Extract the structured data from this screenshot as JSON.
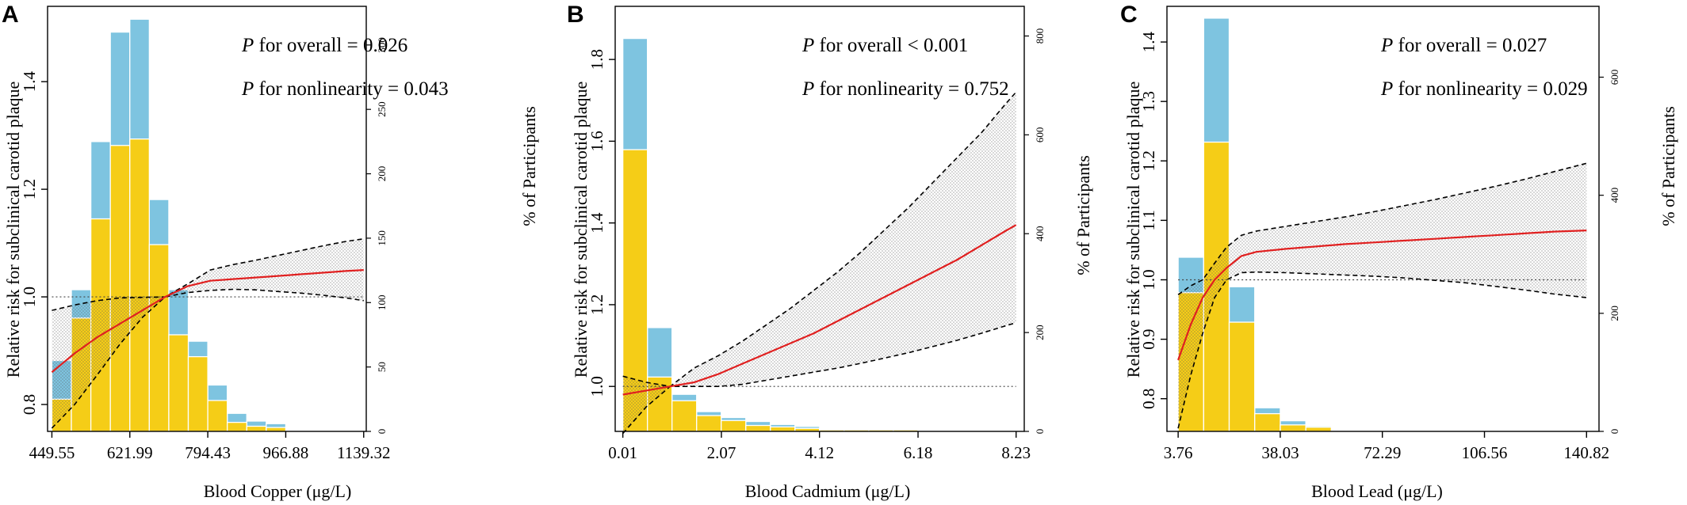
{
  "chart_data": [
    {
      "type": "bar",
      "panel_label": "A",
      "xlabel": "Blood Copper (μg/L)",
      "ylabel": "Relative risk for subclinical carotid plaque",
      "ylabel_right": "% of Participants",
      "x_ticks": [
        "449.55",
        "621.99",
        "794.43",
        "966.88",
        "1139.32"
      ],
      "x_tick_values": [
        449.55,
        621.99,
        794.43,
        966.88,
        1139.32
      ],
      "y_ticks": [
        "0.8",
        "1.0",
        "1.2",
        "1.4"
      ],
      "y_tick_values": [
        0.8,
        1.0,
        1.2,
        1.4
      ],
      "y_right_ticks": [
        "0",
        "50",
        "100",
        "150",
        "200",
        "250",
        "300"
      ],
      "y_right_tick_values": [
        0,
        50,
        100,
        150,
        200,
        250,
        300
      ],
      "xlim": [
        440,
        1145
      ],
      "ylim": [
        0.75,
        1.54
      ],
      "y_right_lim": [
        0,
        330
      ],
      "p_overall_label": "P",
      "p_overall_text": " for overall = 0.026",
      "p_nonlinear_label": "P",
      "p_nonlinear_text": " for nonlinearity = 0.043",
      "bins": [
        449.55,
        492.66,
        535.77,
        578.88,
        621.99,
        665.1,
        708.21,
        751.32,
        794.43,
        837.54,
        880.65,
        923.76,
        966.88,
        1009.99,
        1053.1,
        1096.21,
        1139.32
      ],
      "counts_blue": [
        55,
        110,
        225,
        310,
        320,
        180,
        110,
        70,
        36,
        14,
        8,
        6
      ],
      "counts_yellow": [
        25,
        88,
        165,
        222,
        227,
        145,
        75,
        58,
        24,
        7,
        4,
        3
      ],
      "spline_x": [
        449.55,
        500,
        550,
        600,
        650,
        700,
        750,
        800,
        850,
        900,
        950,
        1000,
        1050,
        1100,
        1139.32
      ],
      "rr": [
        0.86,
        0.895,
        0.925,
        0.95,
        0.975,
        1.0,
        1.02,
        1.03,
        1.033,
        1.036,
        1.039,
        1.042,
        1.045,
        1.048,
        1.05
      ],
      "ci_lower": [
        0.756,
        0.8,
        0.855,
        0.912,
        0.962,
        1.0,
        1.008,
        1.012,
        1.014,
        1.013,
        1.01,
        1.007,
        1.003,
        0.998,
        0.993
      ],
      "ci_upper": [
        0.975,
        0.985,
        0.993,
        0.998,
        0.999,
        1.0,
        1.024,
        1.05,
        1.06,
        1.068,
        1.077,
        1.086,
        1.095,
        1.103,
        1.108
      ],
      "reference": 1.0,
      "colors": {
        "blue": "#7ec4e0",
        "yellow": "#f5cd17",
        "spline": "#e02020",
        "ci": "#000000"
      }
    },
    {
      "type": "bar",
      "panel_label": "B",
      "xlabel": "Blood Cadmium (μg/L)",
      "ylabel": "Relative risk for subclinical carotid plaque",
      "ylabel_right": "% of Participants",
      "x_ticks": [
        "0.01",
        "2.07",
        "4.12",
        "6.18",
        "8.23"
      ],
      "x_tick_values": [
        0.01,
        2.07,
        4.12,
        6.18,
        8.23
      ],
      "y_ticks": [
        "1.0",
        "1.2",
        "1.4",
        "1.6",
        "1.8"
      ],
      "y_tick_values": [
        1.0,
        1.2,
        1.4,
        1.6,
        1.8
      ],
      "y_right_ticks": [
        "0",
        "200",
        "400",
        "600",
        "800"
      ],
      "y_right_tick_values": [
        0,
        200,
        400,
        600,
        800
      ],
      "xlim": [
        -0.15,
        8.4
      ],
      "ylim": [
        0.89,
        1.93
      ],
      "y_right_lim": [
        0,
        860
      ],
      "p_overall_label": "P",
      "p_overall_text": " for overall < 0.001",
      "p_nonlinear_label": "P",
      "p_nonlinear_text": " for nonlinearity = 0.752",
      "bins": [
        0.01,
        0.524,
        1.038,
        1.552,
        2.066,
        2.58,
        3.094,
        3.608,
        4.122,
        4.636,
        5.15,
        5.664,
        6.178,
        6.692,
        7.206,
        7.72,
        8.23
      ],
      "counts_blue": [
        795,
        210,
        75,
        40,
        28,
        20,
        14,
        10,
        4,
        4,
        4,
        4
      ],
      "counts_yellow": [
        570,
        110,
        62,
        32,
        22,
        12,
        9,
        6,
        3,
        3,
        3,
        3
      ],
      "spline_x": [
        0.01,
        0.5,
        1.0,
        1.5,
        2.0,
        2.5,
        3.0,
        3.5,
        4.0,
        4.5,
        5.0,
        5.5,
        6.0,
        6.5,
        7.0,
        7.5,
        8.0,
        8.23
      ],
      "rr": [
        0.98,
        0.99,
        1.0,
        1.01,
        1.03,
        1.055,
        1.08,
        1.105,
        1.13,
        1.16,
        1.19,
        1.22,
        1.25,
        1.28,
        1.31,
        1.345,
        1.38,
        1.395
      ],
      "ci_lower": [
        0.885,
        0.95,
        1.0,
        1.0,
        1.0,
        1.005,
        1.015,
        1.025,
        1.035,
        1.045,
        1.057,
        1.07,
        1.083,
        1.098,
        1.113,
        1.13,
        1.148,
        1.156
      ],
      "ci_upper": [
        1.025,
        1.01,
        1.0,
        1.045,
        1.075,
        1.11,
        1.15,
        1.19,
        1.235,
        1.28,
        1.33,
        1.385,
        1.44,
        1.5,
        1.56,
        1.62,
        1.69,
        1.72
      ],
      "reference": 1.0,
      "colors": {
        "blue": "#7ec4e0",
        "yellow": "#f5cd17",
        "spline": "#e02020",
        "ci": "#000000"
      }
    },
    {
      "type": "bar",
      "panel_label": "C",
      "xlabel": "Blood Lead (μg/L)",
      "ylabel": "Relative risk for subclinical carotid plaque",
      "ylabel_right": "% of Participants",
      "x_ticks": [
        "3.76",
        "38.03",
        "72.29",
        "106.56",
        "140.82"
      ],
      "x_tick_values": [
        3.76,
        38.03,
        72.29,
        106.56,
        140.82
      ],
      "y_ticks": [
        "0.8",
        "0.9",
        "1.0",
        "1.1",
        "1.2",
        "1.3",
        "1.4"
      ],
      "y_tick_values": [
        0.8,
        0.9,
        1.0,
        1.1,
        1.2,
        1.3,
        1.4
      ],
      "y_right_ticks": [
        "0",
        "200",
        "400",
        "600"
      ],
      "y_right_tick_values": [
        0,
        200,
        400,
        600
      ],
      "xlim": [
        0,
        145
      ],
      "ylim": [
        0.745,
        1.46
      ],
      "y_right_lim": [
        0,
        720
      ],
      "p_overall_label": "P",
      "p_overall_text": " for overall = 0.027",
      "p_nonlinear_label": "P",
      "p_nonlinear_text": " for nonlinearity = 0.029",
      "bins": [
        3.76,
        12.33,
        20.89,
        29.46,
        38.03,
        46.6,
        55.16,
        63.73,
        72.29,
        80.86,
        89.43,
        97.99,
        106.56,
        115.13,
        123.69,
        132.26,
        140.82
      ],
      "counts_blue": [
        295,
        700,
        245,
        40,
        18,
        9,
        1,
        0,
        0,
        1,
        1,
        1,
        1,
        1,
        1,
        1
      ],
      "counts_yellow": [
        235,
        490,
        185,
        30,
        11,
        7,
        1,
        0,
        0,
        1,
        1,
        1,
        1,
        1,
        1,
        1
      ],
      "spline_x": [
        3.76,
        8,
        12,
        16,
        20,
        25,
        30,
        40,
        50,
        60,
        70,
        80,
        90,
        100,
        110,
        120,
        130,
        140.82
      ],
      "rr": [
        0.865,
        0.925,
        0.97,
        1.0,
        1.02,
        1.04,
        1.047,
        1.052,
        1.056,
        1.06,
        1.063,
        1.066,
        1.069,
        1.072,
        1.075,
        1.078,
        1.081,
        1.083
      ],
      "ci_lower": [
        0.75,
        0.84,
        0.91,
        0.97,
        1.0,
        1.012,
        1.013,
        1.012,
        1.01,
        1.008,
        1.006,
        1.003,
        0.999,
        0.995,
        0.989,
        0.983,
        0.976,
        0.97
      ],
      "ci_upper": [
        0.975,
        0.99,
        1.0,
        1.028,
        1.055,
        1.075,
        1.082,
        1.09,
        1.098,
        1.106,
        1.115,
        1.125,
        1.135,
        1.146,
        1.157,
        1.169,
        1.182,
        1.196
      ],
      "reference": 1.0,
      "colors": {
        "blue": "#7ec4e0",
        "yellow": "#f5cd17",
        "spline": "#e02020",
        "ci": "#000000"
      }
    }
  ]
}
